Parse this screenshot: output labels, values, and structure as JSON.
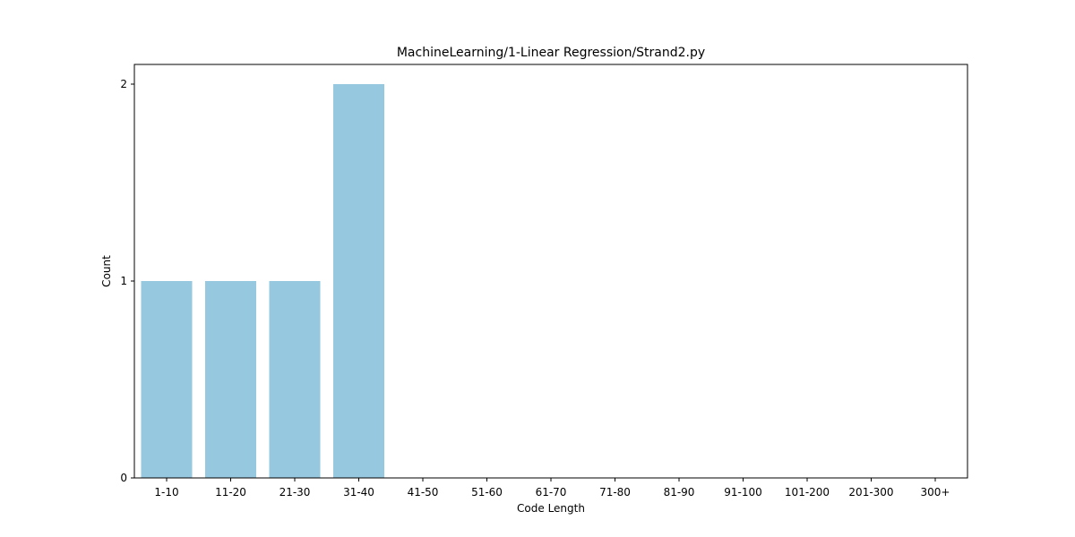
{
  "chart_data": {
    "type": "bar",
    "title": "MachineLearning/1-Linear Regression/Strand2.py",
    "xlabel": "Code Length",
    "ylabel": "Count",
    "categories": [
      "1-10",
      "11-20",
      "21-30",
      "31-40",
      "41-50",
      "51-60",
      "61-70",
      "71-80",
      "81-90",
      "91-100",
      "101-200",
      "201-300",
      "300+"
    ],
    "values": [
      1,
      1,
      1,
      2,
      0,
      0,
      0,
      0,
      0,
      0,
      0,
      0,
      0
    ],
    "ylim": [
      0,
      2.1
    ],
    "yticks": [
      "0",
      "1",
      "2"
    ],
    "bar_color": "#96c9df",
    "grid": false,
    "legend": "none"
  }
}
